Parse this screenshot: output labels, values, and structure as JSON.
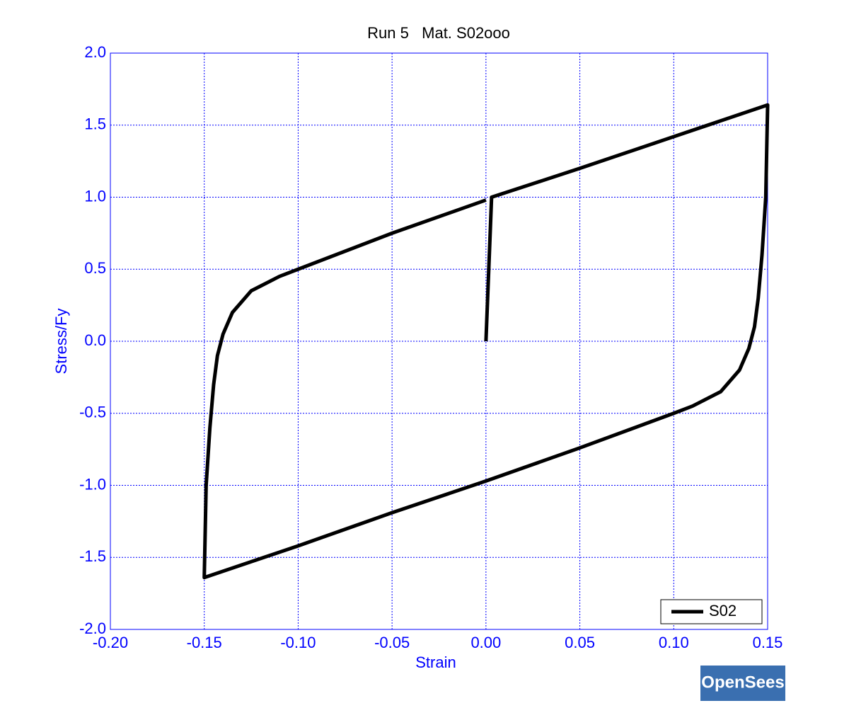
{
  "chart_data": {
    "type": "line",
    "title": "Run 5   Mat. S02ooo",
    "x_label": "Strain",
    "y_label": "Stress/Fy",
    "x": [
      0,
      0.003,
      0.05,
      0.1,
      0.15,
      0.149,
      0.147,
      0.145,
      0.143,
      0.14,
      0.135,
      0.125,
      0.11,
      0.1,
      0.05,
      0,
      -0.05,
      -0.1,
      -0.15,
      -0.149,
      -0.147,
      -0.145,
      -0.143,
      -0.14,
      -0.135,
      -0.125,
      -0.11,
      -0.1,
      -0.05,
      0
    ],
    "series": [
      {
        "name": "S02",
        "color": "#000000",
        "values": [
          0,
          1.0,
          1.2,
          1.42,
          1.64,
          1.0,
          0.6,
          0.3,
          0.1,
          -0.05,
          -0.2,
          -0.35,
          -0.45,
          -0.5,
          -0.74,
          -0.97,
          -1.19,
          -1.42,
          -1.64,
          -1.0,
          -0.6,
          -0.3,
          -0.1,
          0.05,
          0.2,
          0.35,
          0.45,
          0.5,
          0.75,
          0.98
        ]
      }
    ],
    "xlim": [
      -0.2,
      0.15
    ],
    "xticks": [
      {
        "value": -0.2,
        "label": "-0.20"
      },
      -0.15,
      {
        "value": -0.1,
        "label": "-0.10"
      },
      -0.05,
      {
        "value": 0,
        "label": "0.00"
      },
      0.05,
      {
        "value": 0.1,
        "label": "0.10"
      },
      0.15
    ],
    "ylim": [
      -2,
      2
    ],
    "yticks": [
      {
        "value": -2,
        "label": "-2.0"
      },
      -1.5,
      {
        "value": -1,
        "label": "-1.0"
      },
      -0.5,
      {
        "value": 0,
        "label": "0.0"
      },
      0.5,
      {
        "value": 1,
        "label": "1.0"
      },
      1.5,
      {
        "value": 2,
        "label": "2.0"
      }
    ],
    "grid": true,
    "legend": "lower right"
  },
  "logo": "OpenSees"
}
